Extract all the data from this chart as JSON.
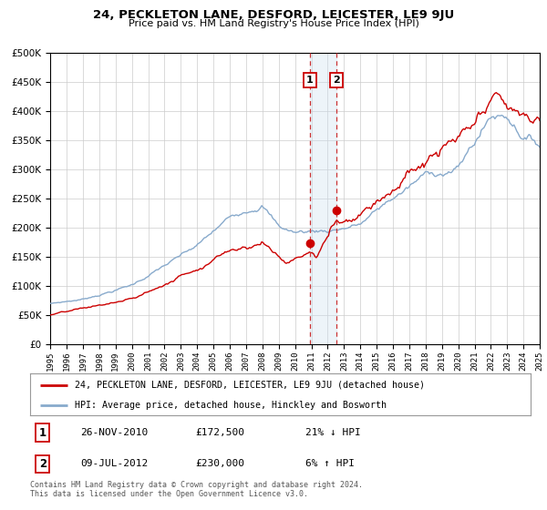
{
  "title": "24, PECKLETON LANE, DESFORD, LEICESTER, LE9 9JU",
  "subtitle": "Price paid vs. HM Land Registry's House Price Index (HPI)",
  "legend_line1": "24, PECKLETON LANE, DESFORD, LEICESTER, LE9 9JU (detached house)",
  "legend_line2": "HPI: Average price, detached house, Hinckley and Bosworth",
  "annotation1_date": "26-NOV-2010",
  "annotation1_price": "£172,500",
  "annotation1_hpi": "21% ↓ HPI",
  "annotation2_date": "09-JUL-2012",
  "annotation2_price": "£230,000",
  "annotation2_hpi": "6% ↑ HPI",
  "footer1": "Contains HM Land Registry data © Crown copyright and database right 2024.",
  "footer2": "This data is licensed under the Open Government Licence v3.0.",
  "red_color": "#cc0000",
  "blue_color": "#88aacc",
  "shade_color": "#cce0f0",
  "vline_color": "#cc3333",
  "background_color": "#ffffff",
  "grid_color": "#cccccc",
  "sale1_year": 2010.9,
  "sale1_value": 172500,
  "sale2_year": 2012.55,
  "sale2_value": 230000,
  "ylim_max": 500000,
  "xmin": 1995,
  "xmax": 2025
}
